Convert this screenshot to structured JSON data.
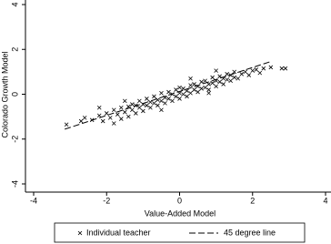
{
  "chart_data": {
    "type": "scatter",
    "x_label": "Value-Added Model",
    "y_label": "Colorado Growth Model",
    "xlim": [
      -4,
      4
    ],
    "xticks": [
      -4,
      -2,
      0,
      2,
      4
    ],
    "ylim": [
      -4,
      4
    ],
    "yticks": [
      -4,
      -2,
      0,
      2,
      4
    ],
    "legend": "bottom",
    "series": [
      {
        "name": "Individual teacher",
        "color": "#000000",
        "marker": "x",
        "x": [
          -3.1,
          -2.7,
          -2.6,
          -2.4,
          -2.2,
          -2.1,
          -2.0,
          -1.9,
          -1.8,
          -1.8,
          -1.7,
          -1.6,
          -1.6,
          -1.5,
          -1.4,
          -1.4,
          -1.3,
          -1.3,
          -1.2,
          -1.2,
          -1.1,
          -1.1,
          -1.0,
          -1.0,
          -0.9,
          -0.9,
          -0.8,
          -0.8,
          -0.7,
          -0.7,
          -0.6,
          -0.6,
          -0.5,
          -0.5,
          -0.4,
          -0.4,
          -0.3,
          -0.3,
          -0.2,
          -0.2,
          -0.1,
          -0.1,
          0.0,
          0.0,
          0.0,
          0.1,
          0.1,
          0.2,
          0.2,
          0.3,
          0.3,
          0.4,
          0.4,
          0.5,
          0.5,
          0.6,
          0.6,
          0.7,
          0.7,
          0.8,
          0.8,
          0.9,
          0.9,
          1.0,
          1.0,
          1.1,
          1.1,
          1.2,
          1.2,
          1.3,
          1.3,
          1.4,
          1.4,
          1.5,
          1.5,
          1.6,
          1.7,
          1.8,
          1.9,
          2.0,
          2.1,
          2.2,
          2.3,
          2.5,
          2.8,
          2.9,
          -0.5,
          0.3,
          -1.5,
          0.8,
          -2.2,
          1.0
        ],
        "y": [
          -1.35,
          -1.2,
          -1.05,
          -1.15,
          -0.95,
          -1.2,
          -0.85,
          -1.05,
          -0.7,
          -1.3,
          -0.9,
          -0.6,
          -1.1,
          -0.8,
          -0.55,
          -1.0,
          -0.7,
          -0.45,
          -0.85,
          -0.5,
          -0.6,
          -0.3,
          -0.75,
          -0.45,
          -0.5,
          -0.2,
          -0.6,
          -0.35,
          -0.4,
          -0.1,
          -0.5,
          -0.25,
          -0.3,
          0.05,
          -0.4,
          -0.15,
          -0.2,
          0.1,
          -0.3,
          0.0,
          -0.1,
          0.2,
          -0.2,
          0.05,
          0.3,
          0.0,
          0.25,
          -0.1,
          0.15,
          0.4,
          0.05,
          0.2,
          0.45,
          0.1,
          0.35,
          0.25,
          0.55,
          0.3,
          0.6,
          0.2,
          0.45,
          0.5,
          0.75,
          0.35,
          0.6,
          0.55,
          0.8,
          0.45,
          0.7,
          0.65,
          0.9,
          0.6,
          0.85,
          0.75,
          1.0,
          0.7,
          0.9,
          1.0,
          0.85,
          1.05,
          1.1,
          0.95,
          1.15,
          1.2,
          1.15,
          1.15,
          -0.7,
          0.7,
          -0.3,
          0.05,
          -0.6,
          1.05
        ]
      },
      {
        "name": "45 degree line",
        "color": "#000000",
        "style": "dashed",
        "x": [
          -3.15,
          2.5
        ],
        "y": [
          -1.56,
          1.46
        ]
      }
    ]
  }
}
